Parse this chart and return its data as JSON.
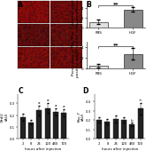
{
  "panel_B_top": {
    "categories": [
      "PBS",
      "HGF"
    ],
    "values": [
      1.2,
      3.8
    ],
    "errors": [
      0.5,
      0.5
    ],
    "bar_colors": [
      "#e0e0e0",
      "#888888"
    ],
    "ylabel": "Pax-7 positive satellite\ncells per section",
    "sig_label": "**",
    "ylim": [
      0,
      5.5
    ]
  },
  "panel_B_bottom": {
    "categories": [
      "PBS",
      "HGF"
    ],
    "values": [
      0.5,
      2.8
    ],
    "errors": [
      0.3,
      1.1
    ],
    "bar_colors": [
      "#e0e0e0",
      "#888888"
    ],
    "ylabel": "Percentage of Pax-7\npositive satellite cells",
    "sig_label": "**",
    "ylim": [
      0,
      5.0
    ]
  },
  "panel_C": {
    "categories": [
      "2",
      "8",
      "24",
      "120",
      "480",
      "720"
    ],
    "values": [
      0.18,
      0.14,
      0.24,
      0.26,
      0.23,
      0.22
    ],
    "errors": [
      0.03,
      0.02,
      0.04,
      0.04,
      0.03,
      0.03
    ],
    "bar_color": "#222222",
    "ylabel": "BrdU\n(AU)",
    "xlabel": "hours after injection",
    "sig_labels": [
      "",
      "",
      "a",
      "a",
      "a",
      "a"
    ],
    "ylim": [
      0,
      0.38
    ]
  },
  "panel_D": {
    "categories": [
      "2",
      "8",
      "24",
      "120",
      "480",
      "720"
    ],
    "values": [
      0.2,
      0.18,
      0.21,
      0.2,
      0.15,
      0.32
    ],
    "errors": [
      0.03,
      0.03,
      0.04,
      0.03,
      0.02,
      0.06
    ],
    "bar_color": "#222222",
    "ylabel": "Pax-7\n(AU)",
    "xlabel": "hours after injection",
    "sig_labels": [
      "",
      "",
      "",
      "",
      "b",
      "**"
    ],
    "ylim": [
      0,
      0.48
    ]
  },
  "bg_color": "#ffffff",
  "font_size": 3.5,
  "tick_font_size": 3.0,
  "label_fontsize": 5.5
}
